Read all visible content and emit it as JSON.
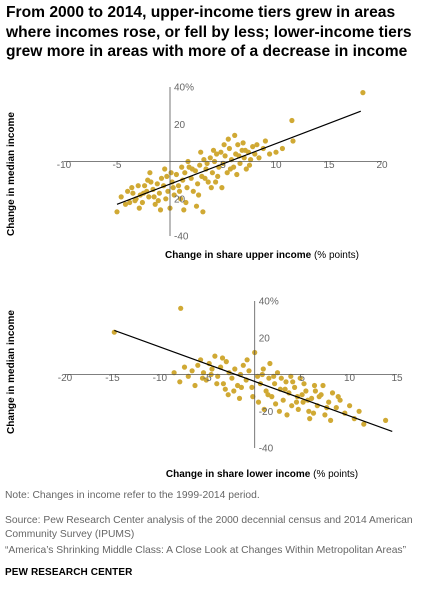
{
  "title": "From 2000 to 2014, upper-income tiers grew in areas where incomes rose, or fell by less; lower-income tiers grew more in areas with more of a decrease in income",
  "colors": {
    "points": "#d0a934",
    "line": "#000000",
    "axis": "#555555",
    "tick": "#666666"
  },
  "chart_data": [
    {
      "type": "scatter",
      "xlabel": "Change in share upper income",
      "xlabel_unit": "(% points)",
      "ylabel": "Change in median income",
      "xlim": [
        -10,
        20
      ],
      "ylim": [
        -40,
        40
      ],
      "x_ticks": [
        "-10",
        "-5",
        "5",
        "10",
        "15",
        "20"
      ],
      "y_ticks": [
        "40%",
        "20",
        "20",
        "-40"
      ],
      "trendline": [
        [
          -5,
          -23
        ],
        [
          18,
          27
        ]
      ],
      "points": [
        [
          -5,
          -27
        ],
        [
          -4.6,
          -19
        ],
        [
          -4.2,
          -23
        ],
        [
          -4,
          -16
        ],
        [
          -3.8,
          -22
        ],
        [
          -3.5,
          -17
        ],
        [
          -3.2,
          -20
        ],
        [
          -3,
          -13
        ],
        [
          -2.8,
          -18
        ],
        [
          -2.6,
          -22
        ],
        [
          -2.4,
          -13
        ],
        [
          -2.2,
          -16
        ],
        [
          -2,
          -19
        ],
        [
          -1.8,
          -11
        ],
        [
          -1.6,
          -15
        ],
        [
          -1.4,
          -23
        ],
        [
          -1.2,
          -12
        ],
        [
          -1,
          -17
        ],
        [
          -0.8,
          -9
        ],
        [
          -0.6,
          -13
        ],
        [
          -0.4,
          -20
        ],
        [
          -0.2,
          -16
        ],
        [
          0,
          -25
        ],
        [
          0.2,
          -11
        ],
        [
          0.4,
          -18
        ],
        [
          0.6,
          -7
        ],
        [
          0.8,
          -13
        ],
        [
          1,
          -20
        ],
        [
          1.2,
          -10
        ],
        [
          1.4,
          -6
        ],
        [
          1.6,
          -14
        ],
        [
          1.8,
          -3
        ],
        [
          2,
          -9
        ],
        [
          2.2,
          -16
        ],
        [
          2.4,
          -5
        ],
        [
          2.6,
          -12
        ],
        [
          2.8,
          -2
        ],
        [
          3,
          -8
        ],
        [
          3.2,
          1
        ],
        [
          3.4,
          -4
        ],
        [
          3.6,
          -11
        ],
        [
          3.8,
          2
        ],
        [
          4,
          -6
        ],
        [
          4.2,
          0
        ],
        [
          4.4,
          4
        ],
        [
          4.6,
          -3
        ],
        [
          4.8,
          5
        ],
        [
          5,
          -1
        ],
        [
          5.2,
          3
        ],
        [
          5.4,
          -6
        ],
        [
          5.6,
          7
        ],
        [
          5.8,
          1
        ],
        [
          6,
          -3
        ],
        [
          6.2,
          4
        ],
        [
          6.4,
          9
        ],
        [
          6.6,
          -1
        ],
        [
          6.8,
          6
        ],
        [
          7,
          2
        ],
        [
          7.2,
          -4
        ],
        [
          7.4,
          5
        ],
        [
          7.6,
          1
        ],
        [
          7.8,
          8
        ],
        [
          8,
          4
        ],
        [
          8.4,
          2
        ],
        [
          8.8,
          7
        ],
        [
          9,
          11
        ],
        [
          9.4,
          4
        ],
        [
          10,
          5
        ],
        [
          10.6,
          7
        ],
        [
          11.6,
          11
        ],
        [
          11.5,
          22
        ],
        [
          18.2,
          37
        ],
        [
          -3.6,
          -14
        ],
        [
          -2.9,
          -25
        ],
        [
          -2.1,
          -10
        ],
        [
          -1.1,
          -21
        ],
        [
          -0.3,
          -8
        ],
        [
          0.9,
          -16
        ],
        [
          1.5,
          -22
        ],
        [
          2.1,
          -4
        ],
        [
          2.7,
          -18
        ],
        [
          3.3,
          -9
        ],
        [
          3.9,
          -14
        ],
        [
          4.5,
          -8
        ],
        [
          5.1,
          9
        ],
        [
          5.7,
          -4
        ],
        [
          6.3,
          -7
        ],
        [
          6.9,
          10
        ],
        [
          7.5,
          -2
        ],
        [
          8.2,
          9
        ],
        [
          1.1,
          -3
        ],
        [
          0.1,
          -6
        ],
        [
          -0.9,
          -26
        ],
        [
          -1.9,
          -6
        ],
        [
          2.5,
          -24
        ],
        [
          4.1,
          6
        ],
        [
          5.5,
          12
        ],
        [
          6.1,
          14
        ],
        [
          3.1,
          -27
        ],
        [
          -0.5,
          -4
        ],
        [
          1.7,
          0
        ],
        [
          2.9,
          5
        ],
        [
          4.3,
          -11
        ],
        [
          4.9,
          -14
        ],
        [
          0.3,
          -14
        ],
        [
          -1.5,
          -19
        ],
        [
          -2.5,
          -17
        ],
        [
          3.5,
          -1
        ],
        [
          6.5,
          3
        ],
        [
          7.1,
          6
        ],
        [
          -3.3,
          -21
        ],
        [
          1.3,
          -26
        ]
      ]
    },
    {
      "type": "scatter",
      "xlabel": "Change in share lower income",
      "xlabel_unit": "(% points)",
      "ylabel": "Change in median income",
      "xlim": [
        -20,
        15
      ],
      "ylim": [
        -40,
        40
      ],
      "x_ticks": [
        "-20",
        "-15",
        "-10",
        "-5",
        "5",
        "10",
        "15"
      ],
      "y_ticks": [
        "40%",
        "20",
        "-20",
        "-40"
      ],
      "trendline": [
        [
          -14.8,
          24
        ],
        [
          14.5,
          -31
        ]
      ],
      "points": [
        [
          -14.8,
          23
        ],
        [
          -7.8,
          36
        ],
        [
          -8.5,
          1
        ],
        [
          -7.9,
          -4
        ],
        [
          -7.4,
          4
        ],
        [
          -7,
          -1
        ],
        [
          -6.6,
          2
        ],
        [
          -6.3,
          -6
        ],
        [
          -6,
          5
        ],
        [
          -5.7,
          8
        ],
        [
          -5.4,
          1
        ],
        [
          -5.1,
          -3
        ],
        [
          -4.8,
          6
        ],
        [
          -4.5,
          3
        ],
        [
          -4.2,
          10
        ],
        [
          -3.9,
          -1
        ],
        [
          -3.6,
          4
        ],
        [
          -3.3,
          -5
        ],
        [
          -3,
          7
        ],
        [
          -2.7,
          1
        ],
        [
          -2.4,
          -2
        ],
        [
          -2.1,
          3
        ],
        [
          -1.8,
          -6
        ],
        [
          -1.5,
          0
        ],
        [
          -1.2,
          5
        ],
        [
          -0.9,
          -3
        ],
        [
          -0.6,
          2
        ],
        [
          -0.3,
          -7
        ],
        [
          0,
          12
        ],
        [
          0.3,
          -1
        ],
        [
          0.6,
          -5
        ],
        [
          0.9,
          3
        ],
        [
          1.2,
          -9
        ],
        [
          1.5,
          -2
        ],
        [
          1.8,
          -12
        ],
        [
          2.1,
          -5
        ],
        [
          2.4,
          1
        ],
        [
          2.7,
          -8
        ],
        [
          3,
          -14
        ],
        [
          3.3,
          -4
        ],
        [
          3.6,
          -10
        ],
        [
          3.9,
          -17
        ],
        [
          4.2,
          -7
        ],
        [
          4.5,
          -12
        ],
        [
          4.8,
          -2
        ],
        [
          5.1,
          -15
        ],
        [
          5.4,
          -9
        ],
        [
          5.7,
          -20
        ],
        [
          6,
          -13
        ],
        [
          6.3,
          -6
        ],
        [
          6.6,
          -17
        ],
        [
          7,
          -11
        ],
        [
          7.4,
          -22
        ],
        [
          7.8,
          -15
        ],
        [
          8.2,
          -10
        ],
        [
          8.6,
          -18
        ],
        [
          9,
          -14
        ],
        [
          9.5,
          -21
        ],
        [
          10,
          -17
        ],
        [
          10.5,
          -24
        ],
        [
          11,
          -20
        ],
        [
          11.5,
          -27
        ],
        [
          13.8,
          -25
        ],
        [
          -2.2,
          -9
        ],
        [
          -1.6,
          -13
        ],
        [
          -0.8,
          8
        ],
        [
          0.4,
          -15
        ],
        [
          1,
          -19
        ],
        [
          1.6,
          6
        ],
        [
          2.2,
          -16
        ],
        [
          2.8,
          -2
        ],
        [
          3.4,
          -22
        ],
        [
          4,
          -4
        ],
        [
          4.6,
          -19
        ],
        [
          5.2,
          -5
        ],
        [
          5.8,
          -24
        ],
        [
          6.4,
          -9
        ],
        [
          7.2,
          -6
        ],
        [
          8,
          -25
        ],
        [
          8.8,
          -12
        ],
        [
          -4,
          -5
        ],
        [
          -3.4,
          9
        ],
        [
          -2.8,
          -11
        ],
        [
          -1.4,
          -7
        ],
        [
          -0.2,
          -12
        ],
        [
          0.8,
          0
        ],
        [
          1.4,
          -11
        ],
        [
          2,
          -1
        ],
        [
          2.6,
          -20
        ],
        [
          3.2,
          -8
        ],
        [
          3.8,
          -1
        ],
        [
          4.4,
          -15
        ],
        [
          5,
          -11
        ],
        [
          5.6,
          -14
        ],
        [
          6.2,
          -21
        ],
        [
          6.8,
          -12
        ],
        [
          7.6,
          -18
        ],
        [
          -5.5,
          -2
        ],
        [
          -4.6,
          0
        ],
        [
          -3.1,
          -8
        ]
      ]
    }
  ],
  "note": "Note: Changes in income refer to the 1999-2014 period.",
  "source": "Source: Pew Research Center analysis of the 2000 decennial census and 2014 American Community Survey (IPUMS)",
  "report": "“America’s Shrinking Middle Class: A Close Look at Changes Within Metropolitan Areas”",
  "brand": "PEW RESEARCH CENTER"
}
